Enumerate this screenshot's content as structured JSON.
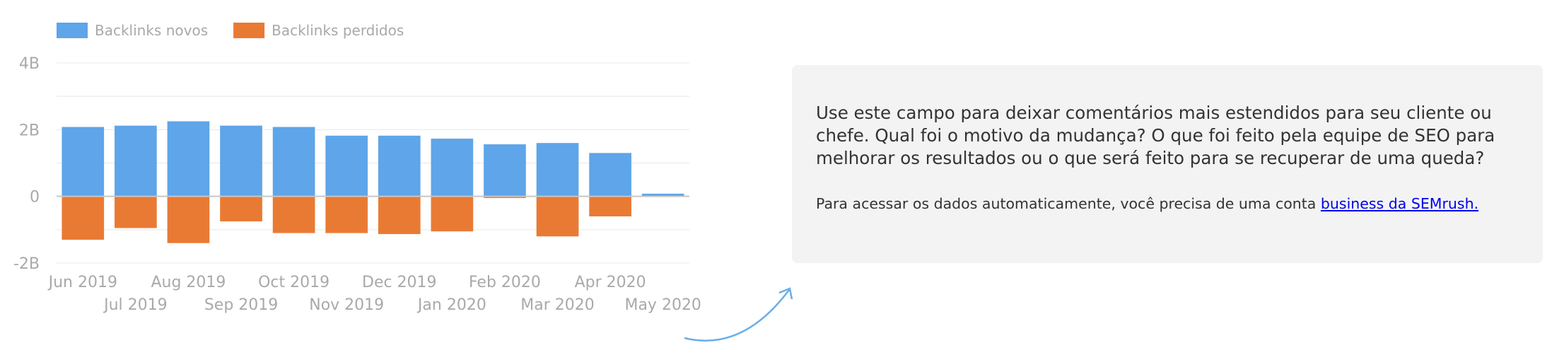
{
  "chart_data": {
    "type": "bar",
    "categories": [
      "Jun 2019",
      "Jul 2019",
      "Aug 2019",
      "Sep 2019",
      "Oct 2019",
      "Nov 2019",
      "Dec 2019",
      "Jan 2020",
      "Feb 2020",
      "Mar 2020",
      "Apr 2020",
      "May 2020"
    ],
    "series": [
      {
        "name": "Backlinks novos",
        "color": "#5ea5e9",
        "values": [
          2.08,
          2.12,
          2.25,
          2.12,
          2.08,
          1.82,
          1.82,
          1.73,
          1.56,
          1.6,
          1.3,
          0.08
        ]
      },
      {
        "name": "Backlinks perdidos",
        "color": "#e97a34",
        "values": [
          -1.3,
          -0.95,
          -1.4,
          -0.75,
          -1.1,
          -1.1,
          -1.13,
          -1.05,
          -0.05,
          -1.2,
          -0.6,
          0.03
        ]
      }
    ],
    "y_ticks": [
      {
        "value": 4,
        "label": "4B"
      },
      {
        "value": 2,
        "label": "2B"
      },
      {
        "value": 0,
        "label": "0"
      },
      {
        "value": -2,
        "label": "-2B"
      }
    ],
    "ylim": [
      -2,
      4
    ],
    "unit": "B",
    "grid": true,
    "legend_position": "top-left"
  },
  "note": {
    "text": "Use este campo para deixar comentários mais estendidos para seu cliente ou chefe. Qual foi o motivo da mudança? O que foi feito pela equipe de SEO para melhorar os resultados ou o que será feito para se recuperar de uma queda?",
    "sub_text": "Para acessar os dados automaticamente, você precisa de uma conta ",
    "link_text": "business da SEMrush."
  },
  "colors": {
    "arrow": "#6aaee8",
    "note_background": "#f3f3f3"
  }
}
